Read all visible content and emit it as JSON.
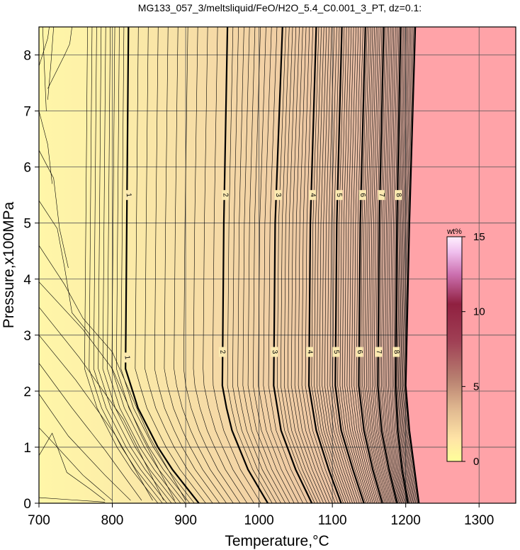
{
  "chart_data": {
    "type": "contour",
    "title": "MG133_057_3/meltsliquid/FeO/H2O_5.4_C0.001_3_PT, dz=0.1:",
    "xlabel": "Temperature,°C",
    "ylabel": "Pressure,x100MPa",
    "xlim": [
      700,
      1350
    ],
    "ylim": [
      0,
      8.5
    ],
    "x_ticks": [
      "700",
      "800",
      "900",
      "1000",
      "1100",
      "1200",
      "1300"
    ],
    "y_ticks": [
      "0",
      "1",
      "2",
      "3",
      "4",
      "5",
      "6",
      "7",
      "8"
    ],
    "grid": true,
    "contour_interval": 0.1,
    "major_contours": [
      {
        "level": 1,
        "label": "1",
        "path": [
          [
            918,
            0
          ],
          [
            870,
            0.8
          ],
          [
            835,
            1.7
          ],
          [
            818,
            2.4
          ],
          [
            822,
            8.5
          ]
        ],
        "label_positions": [
          [
            820,
            2.6
          ],
          [
            822,
            5.5
          ]
        ]
      },
      {
        "level": 2,
        "label": "2",
        "path": [
          [
            1012,
            0
          ],
          [
            985,
            0.6
          ],
          [
            960,
            1.4
          ],
          [
            950,
            2.1
          ],
          [
            952,
            5.0
          ],
          [
            957,
            8.5
          ]
        ],
        "label_positions": [
          [
            950,
            2.7
          ],
          [
            954,
            5.5
          ]
        ]
      },
      {
        "level": 3,
        "label": "3",
        "path": [
          [
            1072,
            0
          ],
          [
            1050,
            0.6
          ],
          [
            1030,
            1.3
          ],
          [
            1020,
            2.1
          ],
          [
            1022,
            5.0
          ],
          [
            1032,
            8.5
          ]
        ],
        "label_positions": [
          [
            1021,
            2.7
          ],
          [
            1026,
            5.5
          ]
        ]
      },
      {
        "level": 4,
        "label": "4",
        "path": [
          [
            1112,
            0
          ],
          [
            1095,
            0.6
          ],
          [
            1078,
            1.3
          ],
          [
            1068,
            2.1
          ],
          [
            1070,
            5.0
          ],
          [
            1078,
            8.5
          ]
        ],
        "label_positions": [
          [
            1069,
            2.7
          ],
          [
            1073,
            5.5
          ]
        ]
      },
      {
        "level": 5,
        "label": "5",
        "path": [
          [
            1143,
            0
          ],
          [
            1128,
            0.6
          ],
          [
            1112,
            1.3
          ],
          [
            1104,
            2.1
          ],
          [
            1106,
            5.0
          ],
          [
            1113,
            8.5
          ]
        ],
        "label_positions": [
          [
            1105,
            2.7
          ],
          [
            1109,
            5.5
          ]
        ]
      },
      {
        "level": 6,
        "label": "6",
        "path": [
          [
            1168,
            0
          ],
          [
            1155,
            0.6
          ],
          [
            1143,
            1.3
          ],
          [
            1136,
            2.1
          ],
          [
            1138,
            5.0
          ],
          [
            1145,
            8.5
          ]
        ],
        "label_positions": [
          [
            1137,
            2.7
          ],
          [
            1141,
            5.5
          ]
        ]
      },
      {
        "level": 7,
        "label": "7",
        "path": [
          [
            1188,
            0
          ],
          [
            1177,
            0.6
          ],
          [
            1167,
            1.3
          ],
          [
            1162,
            2.1
          ],
          [
            1164,
            5.0
          ],
          [
            1170,
            8.5
          ]
        ],
        "label_positions": [
          [
            1163,
            2.7
          ],
          [
            1167,
            5.5
          ]
        ]
      },
      {
        "level": 8,
        "label": "8",
        "path": [
          [
            1203,
            0
          ],
          [
            1195,
            0.6
          ],
          [
            1189,
            1.3
          ],
          [
            1186,
            2.1
          ],
          [
            1188,
            5.0
          ],
          [
            1193,
            8.5
          ]
        ],
        "label_positions": [
          [
            1187,
            2.7
          ],
          [
            1190,
            5.5
          ]
        ]
      }
    ],
    "region_boundary": [
      [
        1218,
        0
      ],
      [
        1212,
        0.6
      ],
      [
        1205,
        1.3
      ],
      [
        1200,
        2.1
      ],
      [
        1205,
        5.0
      ],
      [
        1213,
        8.5
      ]
    ],
    "regions": [
      {
        "description": "above-solidus region (no data)",
        "color": "#ffa3a8"
      }
    ],
    "colorbar": {
      "unit": "wt%",
      "range": [
        0,
        15
      ],
      "ticks": [
        "0",
        "5",
        "10",
        "15"
      ],
      "stops": [
        {
          "value": 0,
          "color": "#ffff9a"
        },
        {
          "value": 1.5,
          "color": "#ffe4a6"
        },
        {
          "value": 3.5,
          "color": "#e0b890"
        },
        {
          "value": 5.5,
          "color": "#b88070"
        },
        {
          "value": 8,
          "color": "#a04055"
        },
        {
          "value": 10.5,
          "color": "#902040"
        },
        {
          "value": 12.5,
          "color": "#cc70b0"
        },
        {
          "value": 14,
          "color": "#f0c0ee"
        },
        {
          "value": 15,
          "color": "#fff0ff"
        }
      ]
    },
    "colors": {
      "low_fill": "#fdf2a8",
      "mid_fill": "#f5d8a8",
      "high_fill": "#e8bba2",
      "above_boundary": "#ffa3a8",
      "contour_line": "#000000"
    }
  }
}
